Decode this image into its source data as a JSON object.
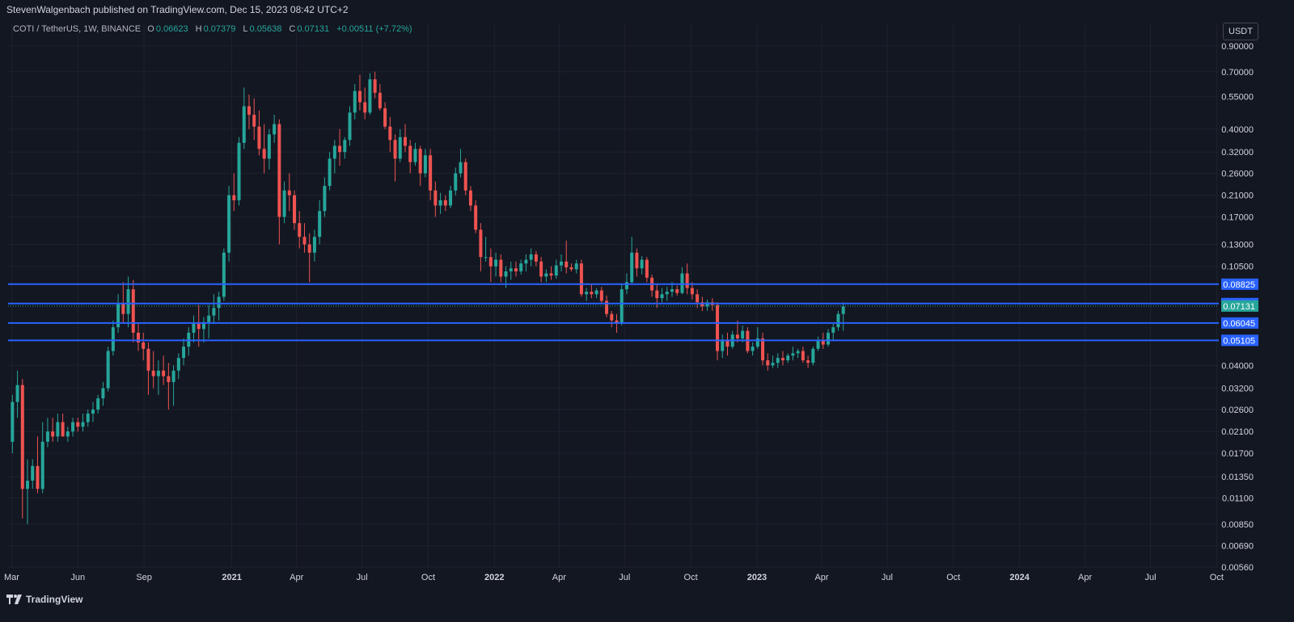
{
  "header": {
    "published": "StevenWalgenbach published on TradingView.com, Dec 15, 2023 08:42 UTC+2"
  },
  "legend": {
    "symbol": "COTI / TetherUS, 1W, BINANCE",
    "o_label": "O",
    "o_value": "0.06623",
    "h_label": "H",
    "h_value": "0.07379",
    "l_label": "L",
    "l_value": "0.05638",
    "c_label": "C",
    "c_value": "0.07131",
    "change": "+0.00511 (+7.72%)"
  },
  "currency_button": "USDT",
  "footer": {
    "brand": "TradingView"
  },
  "colors": {
    "background": "#131722",
    "up": "#26a69a",
    "down": "#ef5350",
    "grid": "#1e222d",
    "level_line": "#2962ff",
    "axis_text": "#d1d4dc"
  },
  "chart_data": {
    "type": "candlestick",
    "title": "COTI / TetherUS, 1W, BINANCE",
    "y_scale": "log",
    "ylim": [
      0.0056,
      0.95
    ],
    "x_range": [
      "2020-02-25",
      "2024-10-04"
    ],
    "y_ticks": [
      "0.90000",
      "0.70000",
      "0.55000",
      "0.40000",
      "0.32000",
      "0.26000",
      "0.21000",
      "0.17000",
      "0.13000",
      "0.10500",
      "0.04000",
      "0.03200",
      "0.02600",
      "0.02100",
      "0.01700",
      "0.01350",
      "0.01100",
      "0.00850",
      "0.00690",
      "0.00560"
    ],
    "x_ticks": [
      {
        "label": "Mar",
        "date": "2020-03-01"
      },
      {
        "label": "Jun",
        "date": "2020-06-01"
      },
      {
        "label": "Sep",
        "date": "2020-09-01"
      },
      {
        "label": "2021",
        "date": "2021-01-01"
      },
      {
        "label": "Apr",
        "date": "2021-04-01"
      },
      {
        "label": "Jul",
        "date": "2021-07-01"
      },
      {
        "label": "Oct",
        "date": "2021-10-01"
      },
      {
        "label": "2022",
        "date": "2022-01-01"
      },
      {
        "label": "Apr",
        "date": "2022-04-01"
      },
      {
        "label": "Jul",
        "date": "2022-07-01"
      },
      {
        "label": "Oct",
        "date": "2022-10-01"
      },
      {
        "label": "2023",
        "date": "2023-01-01"
      },
      {
        "label": "Apr",
        "date": "2023-04-01"
      },
      {
        "label": "Jul",
        "date": "2023-07-01"
      },
      {
        "label": "Oct",
        "date": "2023-10-01"
      },
      {
        "label": "2024",
        "date": "2024-01-01"
      },
      {
        "label": "Apr",
        "date": "2024-04-01"
      },
      {
        "label": "Jul",
        "date": "2024-07-01"
      },
      {
        "label": "Oct",
        "date": "2024-10-01"
      }
    ],
    "horizontal_levels": [
      {
        "value": 0.08825,
        "label": "0.08825"
      },
      {
        "value": 0.07305,
        "label": "0.07305"
      },
      {
        "value": 0.06045,
        "label": "0.06045"
      },
      {
        "value": 0.05105,
        "label": "0.05105"
      }
    ],
    "last_price": {
      "value": 0.07131,
      "label": "0.07131"
    },
    "candles": {
      "start_date": "2020-03-02",
      "interval_days": 7,
      "ohlc": [
        [
          0.019,
          0.03,
          0.017,
          0.028
        ],
        [
          0.028,
          0.038,
          0.024,
          0.033
        ],
        [
          0.033,
          0.035,
          0.009,
          0.012
        ],
        [
          0.012,
          0.016,
          0.0085,
          0.013
        ],
        [
          0.013,
          0.016,
          0.012,
          0.015
        ],
        [
          0.015,
          0.02,
          0.0115,
          0.012
        ],
        [
          0.012,
          0.023,
          0.0115,
          0.019
        ],
        [
          0.019,
          0.024,
          0.018,
          0.021
        ],
        [
          0.021,
          0.024,
          0.019,
          0.02
        ],
        [
          0.02,
          0.025,
          0.019,
          0.023
        ],
        [
          0.023,
          0.025,
          0.02,
          0.02
        ],
        [
          0.02,
          0.022,
          0.019,
          0.021
        ],
        [
          0.021,
          0.024,
          0.02,
          0.023
        ],
        [
          0.023,
          0.024,
          0.021,
          0.022
        ],
        [
          0.022,
          0.025,
          0.021,
          0.023
        ],
        [
          0.023,
          0.026,
          0.022,
          0.025
        ],
        [
          0.025,
          0.028,
          0.023,
          0.026
        ],
        [
          0.026,
          0.03,
          0.025,
          0.029
        ],
        [
          0.029,
          0.034,
          0.027,
          0.032
        ],
        [
          0.032,
          0.048,
          0.031,
          0.046
        ],
        [
          0.046,
          0.062,
          0.044,
          0.058
        ],
        [
          0.058,
          0.08,
          0.055,
          0.073
        ],
        [
          0.073,
          0.09,
          0.06,
          0.066
        ],
        [
          0.066,
          0.095,
          0.058,
          0.084
        ],
        [
          0.084,
          0.092,
          0.05,
          0.055
        ],
        [
          0.055,
          0.06,
          0.046,
          0.05
        ],
        [
          0.05,
          0.055,
          0.042,
          0.047
        ],
        [
          0.047,
          0.05,
          0.03,
          0.038
        ],
        [
          0.038,
          0.046,
          0.032,
          0.036
        ],
        [
          0.036,
          0.042,
          0.03,
          0.038
        ],
        [
          0.038,
          0.044,
          0.033,
          0.036
        ],
        [
          0.036,
          0.041,
          0.026,
          0.034
        ],
        [
          0.034,
          0.04,
          0.027,
          0.038
        ],
        [
          0.038,
          0.045,
          0.035,
          0.043
        ],
        [
          0.043,
          0.052,
          0.04,
          0.048
        ],
        [
          0.048,
          0.058,
          0.044,
          0.055
        ],
        [
          0.055,
          0.065,
          0.05,
          0.06
        ],
        [
          0.06,
          0.072,
          0.048,
          0.057
        ],
        [
          0.057,
          0.064,
          0.05,
          0.061
        ],
        [
          0.061,
          0.072,
          0.052,
          0.065
        ],
        [
          0.065,
          0.08,
          0.06,
          0.07
        ],
        [
          0.07,
          0.082,
          0.062,
          0.078
        ],
        [
          0.078,
          0.125,
          0.075,
          0.12
        ],
        [
          0.12,
          0.23,
          0.11,
          0.21
        ],
        [
          0.21,
          0.26,
          0.18,
          0.2
        ],
        [
          0.2,
          0.37,
          0.19,
          0.35
        ],
        [
          0.35,
          0.6,
          0.33,
          0.5
        ],
        [
          0.5,
          0.56,
          0.4,
          0.46
        ],
        [
          0.46,
          0.54,
          0.36,
          0.41
        ],
        [
          0.41,
          0.48,
          0.31,
          0.33
        ],
        [
          0.33,
          0.42,
          0.26,
          0.3
        ],
        [
          0.3,
          0.4,
          0.27,
          0.38
        ],
        [
          0.38,
          0.46,
          0.35,
          0.42
        ],
        [
          0.42,
          0.44,
          0.13,
          0.17
        ],
        [
          0.17,
          0.24,
          0.16,
          0.22
        ],
        [
          0.22,
          0.26,
          0.18,
          0.21
        ],
        [
          0.21,
          0.22,
          0.15,
          0.16
        ],
        [
          0.16,
          0.18,
          0.125,
          0.14
        ],
        [
          0.14,
          0.16,
          0.12,
          0.13
        ],
        [
          0.13,
          0.145,
          0.09,
          0.12
        ],
        [
          0.12,
          0.15,
          0.11,
          0.14
        ],
        [
          0.14,
          0.2,
          0.13,
          0.18
        ],
        [
          0.18,
          0.25,
          0.17,
          0.23
        ],
        [
          0.23,
          0.32,
          0.22,
          0.3
        ],
        [
          0.3,
          0.36,
          0.26,
          0.34
        ],
        [
          0.34,
          0.4,
          0.28,
          0.32
        ],
        [
          0.32,
          0.37,
          0.3,
          0.36
        ],
        [
          0.36,
          0.5,
          0.34,
          0.47
        ],
        [
          0.47,
          0.62,
          0.44,
          0.58
        ],
        [
          0.58,
          0.68,
          0.48,
          0.52
        ],
        [
          0.52,
          0.6,
          0.44,
          0.47
        ],
        [
          0.47,
          0.69,
          0.46,
          0.65
        ],
        [
          0.65,
          0.7,
          0.54,
          0.57
        ],
        [
          0.57,
          0.62,
          0.48,
          0.49
        ],
        [
          0.49,
          0.52,
          0.4,
          0.41
        ],
        [
          0.41,
          0.45,
          0.32,
          0.36
        ],
        [
          0.36,
          0.38,
          0.24,
          0.3
        ],
        [
          0.3,
          0.4,
          0.29,
          0.37
        ],
        [
          0.37,
          0.42,
          0.32,
          0.34
        ],
        [
          0.34,
          0.36,
          0.26,
          0.29
        ],
        [
          0.29,
          0.35,
          0.28,
          0.33
        ],
        [
          0.33,
          0.34,
          0.23,
          0.26
        ],
        [
          0.26,
          0.33,
          0.25,
          0.31
        ],
        [
          0.31,
          0.33,
          0.2,
          0.22
        ],
        [
          0.22,
          0.24,
          0.17,
          0.19
        ],
        [
          0.19,
          0.215,
          0.175,
          0.2
        ],
        [
          0.2,
          0.21,
          0.18,
          0.19
        ],
        [
          0.19,
          0.23,
          0.185,
          0.22
        ],
        [
          0.22,
          0.275,
          0.21,
          0.26
        ],
        [
          0.26,
          0.33,
          0.25,
          0.29
        ],
        [
          0.29,
          0.3,
          0.21,
          0.22
        ],
        [
          0.22,
          0.23,
          0.18,
          0.19
        ],
        [
          0.19,
          0.2,
          0.145,
          0.15
        ],
        [
          0.15,
          0.16,
          0.1,
          0.115
        ],
        [
          0.115,
          0.14,
          0.11,
          0.115
        ],
        [
          0.115,
          0.125,
          0.09,
          0.105
        ],
        [
          0.105,
          0.12,
          0.095,
          0.112
        ],
        [
          0.112,
          0.118,
          0.09,
          0.095
        ],
        [
          0.095,
          0.105,
          0.085,
          0.1
        ],
        [
          0.1,
          0.11,
          0.092,
          0.103
        ],
        [
          0.103,
          0.11,
          0.095,
          0.1
        ],
        [
          0.1,
          0.112,
          0.097,
          0.108
        ],
        [
          0.108,
          0.118,
          0.1,
          0.112
        ],
        [
          0.112,
          0.125,
          0.105,
          0.118
        ],
        [
          0.118,
          0.122,
          0.105,
          0.11
        ],
        [
          0.11,
          0.115,
          0.09,
          0.095
        ],
        [
          0.095,
          0.102,
          0.09,
          0.098
        ],
        [
          0.098,
          0.105,
          0.092,
          0.096
        ],
        [
          0.096,
          0.112,
          0.093,
          0.106
        ],
        [
          0.106,
          0.118,
          0.1,
          0.11
        ],
        [
          0.11,
          0.135,
          0.098,
          0.104
        ],
        [
          0.104,
          0.108,
          0.1,
          0.102
        ],
        [
          0.102,
          0.112,
          0.098,
          0.108
        ],
        [
          0.108,
          0.112,
          0.078,
          0.08
        ],
        [
          0.08,
          0.085,
          0.075,
          0.082
        ],
        [
          0.082,
          0.088,
          0.077,
          0.08
        ],
        [
          0.08,
          0.085,
          0.077,
          0.083
        ],
        [
          0.083,
          0.086,
          0.073,
          0.075
        ],
        [
          0.075,
          0.079,
          0.064,
          0.066
        ],
        [
          0.066,
          0.068,
          0.058,
          0.062
        ],
        [
          0.062,
          0.066,
          0.055,
          0.06
        ],
        [
          0.06,
          0.088,
          0.059,
          0.084
        ],
        [
          0.084,
          0.098,
          0.08,
          0.09
        ],
        [
          0.09,
          0.14,
          0.088,
          0.12
        ],
        [
          0.12,
          0.125,
          0.095,
          0.103
        ],
        [
          0.103,
          0.116,
          0.097,
          0.112
        ],
        [
          0.112,
          0.115,
          0.09,
          0.094
        ],
        [
          0.094,
          0.097,
          0.078,
          0.083
        ],
        [
          0.083,
          0.088,
          0.07,
          0.077
        ],
        [
          0.077,
          0.085,
          0.074,
          0.08
        ],
        [
          0.08,
          0.086,
          0.075,
          0.082
        ],
        [
          0.082,
          0.09,
          0.078,
          0.084
        ],
        [
          0.084,
          0.087,
          0.079,
          0.081
        ],
        [
          0.081,
          0.104,
          0.08,
          0.098
        ],
        [
          0.098,
          0.108,
          0.08,
          0.085
        ],
        [
          0.085,
          0.09,
          0.076,
          0.08
        ],
        [
          0.08,
          0.084,
          0.07,
          0.074
        ],
        [
          0.074,
          0.078,
          0.068,
          0.071
        ],
        [
          0.071,
          0.076,
          0.068,
          0.074
        ],
        [
          0.074,
          0.077,
          0.068,
          0.072
        ],
        [
          0.072,
          0.074,
          0.042,
          0.046
        ],
        [
          0.046,
          0.054,
          0.043,
          0.051
        ],
        [
          0.051,
          0.055,
          0.044,
          0.048
        ],
        [
          0.048,
          0.056,
          0.047,
          0.054
        ],
        [
          0.054,
          0.062,
          0.05,
          0.052
        ],
        [
          0.052,
          0.059,
          0.05,
          0.056
        ],
        [
          0.056,
          0.058,
          0.045,
          0.046
        ],
        [
          0.046,
          0.05,
          0.044,
          0.048
        ],
        [
          0.048,
          0.058,
          0.047,
          0.052
        ],
        [
          0.052,
          0.055,
          0.04,
          0.042
        ],
        [
          0.042,
          0.045,
          0.038,
          0.04
        ],
        [
          0.04,
          0.044,
          0.039,
          0.041
        ],
        [
          0.041,
          0.045,
          0.039,
          0.043
        ],
        [
          0.043,
          0.046,
          0.04,
          0.042
        ],
        [
          0.042,
          0.045,
          0.041,
          0.044
        ],
        [
          0.044,
          0.048,
          0.042,
          0.045
        ],
        [
          0.045,
          0.047,
          0.043,
          0.046
        ],
        [
          0.046,
          0.048,
          0.041,
          0.042
        ],
        [
          0.042,
          0.044,
          0.039,
          0.041
        ],
        [
          0.041,
          0.048,
          0.04,
          0.047
        ],
        [
          0.047,
          0.053,
          0.046,
          0.051
        ],
        [
          0.051,
          0.055,
          0.047,
          0.049
        ],
        [
          0.049,
          0.057,
          0.048,
          0.055
        ],
        [
          0.055,
          0.06,
          0.051,
          0.058
        ],
        [
          0.058,
          0.068,
          0.056,
          0.066
        ],
        [
          0.066,
          0.074,
          0.056,
          0.071
        ]
      ]
    }
  }
}
